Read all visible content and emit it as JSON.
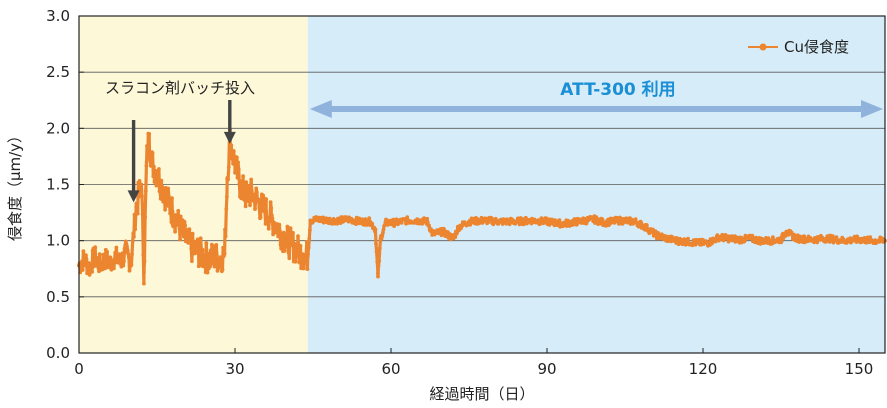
{
  "chart_data": {
    "type": "line",
    "title": "",
    "xlabel": "経過時間（日）",
    "ylabel": "侵食度（μm/y）",
    "xlim": [
      0,
      155
    ],
    "ylim": [
      0,
      3.0
    ],
    "x_ticks": [
      "0",
      "30",
      "60",
      "90",
      "120",
      "150"
    ],
    "y_ticks": [
      "0.0",
      "0.5",
      "1.0",
      "1.5",
      "2.0",
      "2.5",
      "3.0"
    ],
    "grid": "horizontal",
    "legend_position": "top-right",
    "colors": {
      "series": "#ec8530",
      "region_pre": "#fdf8d8",
      "region_att": "#d6ecf8",
      "arrow_att": "#8fb3dc",
      "annotation_arrow": "#444444",
      "att_text": "#1a8fd6"
    },
    "regions": [
      {
        "x_start": 0,
        "x_end": 44,
        "label": ""
      },
      {
        "x_start": 44,
        "x_end": 155,
        "label": "ATT-300 利用"
      }
    ],
    "annotations": [
      {
        "text": "スラコン剤バッチ投入",
        "arrows_at_x": [
          10.5,
          29
        ]
      }
    ],
    "series": [
      {
        "name": "Cu侵食度",
        "points": [
          [
            0,
            0.78
          ],
          [
            1,
            0.84
          ],
          [
            2,
            0.76
          ],
          [
            3,
            0.86
          ],
          [
            4,
            0.78
          ],
          [
            5,
            0.84
          ],
          [
            6,
            0.8
          ],
          [
            7,
            0.86
          ],
          [
            8,
            0.8
          ],
          [
            9,
            0.9
          ],
          [
            10,
            0.8
          ],
          [
            11,
            1.3
          ],
          [
            12,
            1.5
          ],
          [
            12.5,
            0.72
          ],
          [
            13,
            1.7
          ],
          [
            13.5,
            1.95
          ],
          [
            14,
            1.7
          ],
          [
            15,
            1.6
          ],
          [
            16,
            1.48
          ],
          [
            17,
            1.36
          ],
          [
            18,
            1.26
          ],
          [
            19,
            1.16
          ],
          [
            20,
            1.06
          ],
          [
            21,
            0.98
          ],
          [
            22,
            0.92
          ],
          [
            23,
            0.9
          ],
          [
            24,
            0.86
          ],
          [
            25,
            0.84
          ],
          [
            26,
            0.86
          ],
          [
            27,
            0.84
          ],
          [
            28,
            0.88
          ],
          [
            28.5,
            1.55
          ],
          [
            29,
            1.9
          ],
          [
            30,
            1.68
          ],
          [
            31,
            1.5
          ],
          [
            32,
            1.4
          ],
          [
            33,
            1.42
          ],
          [
            34,
            1.38
          ],
          [
            35,
            1.3
          ],
          [
            36,
            1.26
          ],
          [
            37,
            1.2
          ],
          [
            38,
            1.14
          ],
          [
            39,
            1.06
          ],
          [
            40,
            1.0
          ],
          [
            41,
            0.96
          ],
          [
            42,
            0.92
          ],
          [
            43,
            0.88
          ],
          [
            44,
            0.86
          ],
          [
            44.5,
            1.18
          ],
          [
            46,
            1.19
          ],
          [
            48,
            1.18
          ],
          [
            50,
            1.18
          ],
          [
            52,
            1.19
          ],
          [
            54,
            1.17
          ],
          [
            56,
            1.17
          ],
          [
            57,
            1.1
          ],
          [
            57.5,
            0.68
          ],
          [
            58,
            1.02
          ],
          [
            59,
            1.16
          ],
          [
            61,
            1.16
          ],
          [
            63,
            1.18
          ],
          [
            65,
            1.18
          ],
          [
            67,
            1.17
          ],
          [
            68,
            1.06
          ],
          [
            70,
            1.08
          ],
          [
            72,
            1.02
          ],
          [
            73,
            1.12
          ],
          [
            75,
            1.17
          ],
          [
            78,
            1.18
          ],
          [
            81,
            1.17
          ],
          [
            84,
            1.17
          ],
          [
            87,
            1.18
          ],
          [
            90,
            1.17
          ],
          [
            93,
            1.15
          ],
          [
            96,
            1.17
          ],
          [
            99,
            1.19
          ],
          [
            101,
            1.16
          ],
          [
            104,
            1.18
          ],
          [
            107,
            1.17
          ],
          [
            109,
            1.12
          ],
          [
            111,
            1.05
          ],
          [
            113,
            1.02
          ],
          [
            115,
            1.0
          ],
          [
            117,
            0.99
          ],
          [
            119,
            0.98
          ],
          [
            121,
            0.98
          ],
          [
            123,
            1.03
          ],
          [
            125,
            1.02
          ],
          [
            127,
            1.01
          ],
          [
            129,
            1.02
          ],
          [
            131,
            1.0
          ],
          [
            133,
            1.0
          ],
          [
            135,
            1.01
          ],
          [
            136,
            1.08
          ],
          [
            138,
            1.02
          ],
          [
            141,
            1.01
          ],
          [
            144,
            1.02
          ],
          [
            147,
            1.0
          ],
          [
            150,
            1.01
          ],
          [
            153,
            1.0
          ],
          [
            155,
            1.0
          ]
        ]
      }
    ]
  }
}
